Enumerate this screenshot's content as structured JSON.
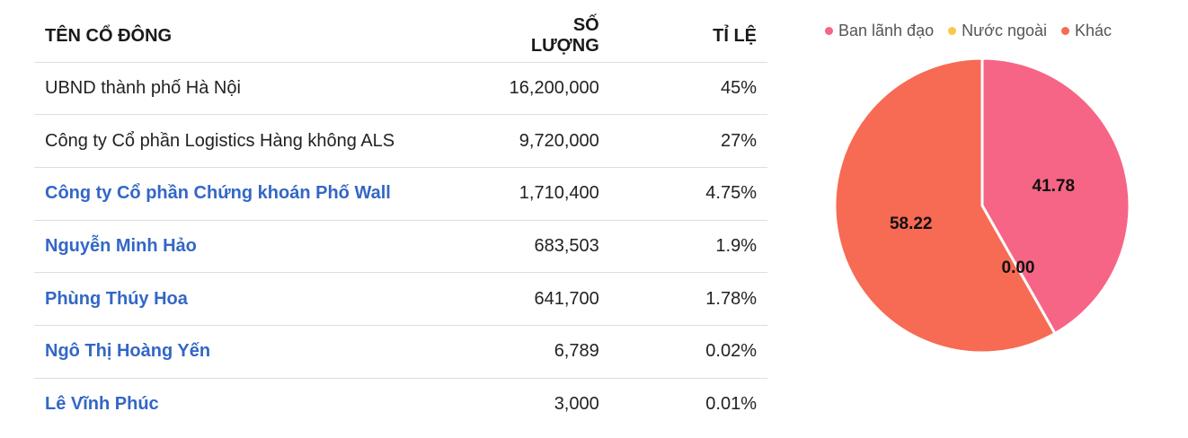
{
  "table": {
    "headers": {
      "name": "TÊN CỔ ĐÔNG",
      "qty": "SỐ LƯỢNG",
      "pct": "TỈ LỆ"
    },
    "rows": [
      {
        "name": "UBND thành phố Hà Nội",
        "qty": "16,200,000",
        "pct": "45%",
        "link": false
      },
      {
        "name": "Công ty Cổ phần Logistics Hàng không ALS",
        "qty": "9,720,000",
        "pct": "27%",
        "link": false
      },
      {
        "name": "Công ty Cổ phần Chứng khoán Phố Wall",
        "qty": "1,710,400",
        "pct": "4.75%",
        "link": true
      },
      {
        "name": "Nguyễn Minh Hảo",
        "qty": "683,503",
        "pct": "1.9%",
        "link": true
      },
      {
        "name": "Phùng Thúy Hoa",
        "qty": "641,700",
        "pct": "1.78%",
        "link": true
      },
      {
        "name": "Ngô Thị Hoàng Yến",
        "qty": "6,789",
        "pct": "0.02%",
        "link": true
      },
      {
        "name": "Lê Vĩnh Phúc",
        "qty": "3,000",
        "pct": "0.01%",
        "link": true
      }
    ]
  },
  "chart_data": {
    "type": "pie",
    "categories": [
      "Ban lãnh đạo",
      "Nước ngoài",
      "Khác"
    ],
    "values": [
      41.78,
      0.0,
      58.22
    ],
    "data_labels": [
      "41.78",
      "0.00",
      "58.22"
    ],
    "colors": [
      "#f66586",
      "#f9c846",
      "#f76a53"
    ],
    "legend_position": "top"
  }
}
